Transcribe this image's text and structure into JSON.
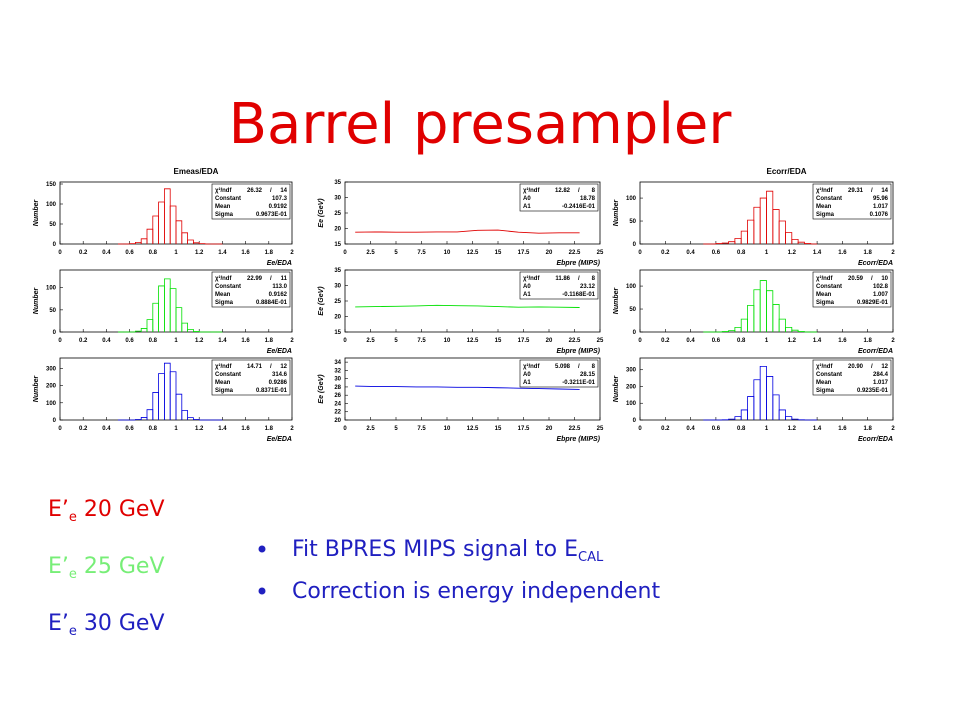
{
  "title": "Barrel presampler",
  "panels": [
    {
      "type": "histogram",
      "title": "Emeas/EDA",
      "ylabel": "Number",
      "xlabel": "Ee/EDA",
      "color": "#e00000",
      "xlim": [
        0,
        2
      ],
      "xticks": [
        0,
        0.2,
        0.4,
        0.6,
        0.8,
        1,
        1.2,
        1.4,
        1.6,
        1.8,
        2
      ],
      "ylim": [
        0,
        155
      ],
      "yticks": [
        0,
        50,
        100,
        150
      ],
      "bins": [
        0.5,
        0.55,
        0.6,
        0.65,
        0.7,
        0.75,
        0.8,
        0.85,
        0.9,
        0.95,
        1,
        1.05,
        1.1,
        1.15,
        1.2,
        1.25,
        1.3,
        1.35,
        1.4
      ],
      "counts": [
        0,
        0,
        1,
        4,
        13,
        37,
        70,
        105,
        138,
        95,
        58,
        28,
        10,
        3,
        1,
        0,
        0,
        0
      ],
      "stats": [
        [
          "χ²/ndf",
          "26.32",
          "/",
          "14"
        ],
        [
          "Constant",
          "107.3"
        ],
        [
          "Mean",
          "0.9192"
        ],
        [
          "Sigma",
          "0.9673E-01"
        ]
      ]
    },
    {
      "type": "histogram",
      "ylabel": "Number",
      "xlabel": "Ee/EDA",
      "color": "#00e000",
      "xlim": [
        0,
        2
      ],
      "xticks": [
        0,
        0.2,
        0.4,
        0.6,
        0.8,
        1,
        1.2,
        1.4,
        1.6,
        1.8,
        2
      ],
      "ylim": [
        0,
        140
      ],
      "yticks": [
        0,
        50,
        100
      ],
      "bins": [
        0.5,
        0.55,
        0.6,
        0.65,
        0.7,
        0.75,
        0.8,
        0.85,
        0.9,
        0.95,
        1,
        1.05,
        1.1,
        1.15,
        1.2,
        1.25,
        1.3,
        1.35,
        1.4
      ],
      "counts": [
        0,
        0,
        0,
        2,
        8,
        28,
        65,
        104,
        120,
        98,
        55,
        20,
        6,
        1,
        0,
        0,
        0,
        0
      ],
      "stats": [
        [
          "χ²/ndf",
          "22.99",
          "/",
          "11"
        ],
        [
          "Constant",
          "113.0"
        ],
        [
          "Mean",
          "0.9162"
        ],
        [
          "Sigma",
          "0.8884E-01"
        ]
      ]
    },
    {
      "type": "histogram",
      "ylabel": "Number",
      "xlabel": "Ee/EDA",
      "color": "#0000e0",
      "xlim": [
        0,
        2
      ],
      "xticks": [
        0,
        0.2,
        0.4,
        0.6,
        0.8,
        1,
        1.2,
        1.4,
        1.6,
        1.8,
        2
      ],
      "ylim": [
        0,
        360
      ],
      "yticks": [
        0,
        100,
        200,
        300
      ],
      "bins": [
        0.5,
        0.55,
        0.6,
        0.65,
        0.7,
        0.75,
        0.8,
        0.85,
        0.9,
        0.95,
        1,
        1.05,
        1.1,
        1.15,
        1.2,
        1.25,
        1.3,
        1.35,
        1.4
      ],
      "counts": [
        0,
        0,
        0,
        3,
        15,
        60,
        160,
        270,
        330,
        280,
        150,
        55,
        14,
        3,
        0,
        0,
        0,
        0
      ],
      "stats": [
        [
          "χ²/ndf",
          "14.71",
          "/",
          "12"
        ],
        [
          "Constant",
          "314.6"
        ],
        [
          "Mean",
          "0.9286"
        ],
        [
          "Sigma",
          "0.8371E-01"
        ]
      ]
    },
    {
      "type": "line",
      "ylabel": "Ee (GeV)",
      "xlabel": "Ebpre (MIPS)",
      "color": "#e00000",
      "xlim": [
        0,
        25
      ],
      "xticks": [
        0,
        2.5,
        5,
        7.5,
        10,
        12.5,
        15,
        17.5,
        20,
        22.5,
        25
      ],
      "ylim": [
        15,
        35
      ],
      "yticks": [
        15,
        20,
        25,
        30,
        35
      ],
      "x": [
        1,
        3,
        5,
        7,
        9,
        11,
        13,
        15,
        17,
        19,
        21,
        23
      ],
      "values": [
        18.8,
        18.9,
        18.8,
        18.8,
        18.9,
        18.9,
        19.4,
        19.5,
        18.8,
        18.5,
        18.6,
        18.6
      ],
      "stats": [
        [
          "χ²/ndf",
          "12.82",
          "/",
          "8"
        ],
        [
          "A0",
          "18.78"
        ],
        [
          "A1",
          "-0.2416E-01"
        ]
      ]
    },
    {
      "type": "line",
      "ylabel": "Ee (GeV)",
      "xlabel": "Ebpre (MIPS)",
      "color": "#00e000",
      "xlim": [
        0,
        25
      ],
      "xticks": [
        0,
        2.5,
        5,
        7.5,
        10,
        12.5,
        15,
        17.5,
        20,
        22.5,
        25
      ],
      "ylim": [
        15,
        35
      ],
      "yticks": [
        15,
        20,
        25,
        30,
        35
      ],
      "x": [
        1,
        3,
        5,
        7,
        9,
        11,
        13,
        15,
        17,
        19,
        21,
        23
      ],
      "values": [
        23.1,
        23.2,
        23.3,
        23.4,
        23.6,
        23.5,
        23.4,
        23.2,
        23.0,
        23.1,
        23.0,
        22.9
      ],
      "stats": [
        [
          "χ²/ndf",
          "11.86",
          "/",
          "8"
        ],
        [
          "A0",
          "23.12"
        ],
        [
          "A1",
          "-0.1168E-01"
        ]
      ]
    },
    {
      "type": "line",
      "ylabel": "Ee (GeV)",
      "xlabel": "Ebpre (MIPS)",
      "color": "#0000e0",
      "xlim": [
        0,
        25
      ],
      "xticks": [
        0,
        2.5,
        5,
        7.5,
        10,
        12.5,
        15,
        17.5,
        20,
        22.5,
        25
      ],
      "ylim": [
        20,
        35
      ],
      "yticks": [
        20,
        22,
        24,
        26,
        28,
        30,
        32,
        34
      ],
      "x": [
        1,
        3,
        5,
        7,
        9,
        11,
        13,
        15,
        17,
        19,
        21,
        23
      ],
      "values": [
        28.2,
        28.1,
        28.1,
        28.0,
        28.0,
        27.9,
        27.9,
        27.8,
        27.7,
        27.6,
        27.5,
        27.4
      ],
      "stats": [
        [
          "χ²/ndf",
          "5.098",
          "/",
          "8"
        ],
        [
          "A0",
          "28.15"
        ],
        [
          "A1",
          "-0.3211E-01"
        ]
      ]
    },
    {
      "type": "histogram",
      "title": "Ecorr/EDA",
      "ylabel": "Number",
      "xlabel": "Ecorr/EDA",
      "color": "#e00000",
      "xlim": [
        0,
        2
      ],
      "xticks": [
        0,
        0.2,
        0.4,
        0.6,
        0.8,
        1,
        1.2,
        1.4,
        1.6,
        1.8,
        2
      ],
      "ylim": [
        0,
        135
      ],
      "yticks": [
        0,
        50,
        100
      ],
      "bins": [
        0.5,
        0.55,
        0.6,
        0.65,
        0.7,
        0.75,
        0.8,
        0.85,
        0.9,
        0.95,
        1,
        1.05,
        1.1,
        1.15,
        1.2,
        1.25,
        1.3,
        1.35,
        1.4
      ],
      "counts": [
        0,
        0,
        1,
        2,
        5,
        12,
        28,
        52,
        80,
        100,
        115,
        75,
        50,
        25,
        10,
        4,
        1,
        0
      ],
      "stats": [
        [
          "χ²/ndf",
          "29.31",
          "/",
          "14"
        ],
        [
          "Constant",
          "95.96"
        ],
        [
          "Mean",
          "1.017"
        ],
        [
          "Sigma",
          "0.1076"
        ]
      ]
    },
    {
      "type": "histogram",
      "ylabel": "Number",
      "xlabel": "Ecorr/EDA",
      "color": "#00e000",
      "xlim": [
        0,
        2
      ],
      "xticks": [
        0,
        0.2,
        0.4,
        0.6,
        0.8,
        1,
        1.2,
        1.4,
        1.6,
        1.8,
        2
      ],
      "ylim": [
        0,
        135
      ],
      "yticks": [
        0,
        50,
        100
      ],
      "bins": [
        0.5,
        0.55,
        0.6,
        0.65,
        0.7,
        0.75,
        0.8,
        0.85,
        0.9,
        0.95,
        1,
        1.05,
        1.1,
        1.15,
        1.2,
        1.25,
        1.3,
        1.35,
        1.4
      ],
      "counts": [
        0,
        0,
        0,
        1,
        3,
        10,
        28,
        58,
        92,
        112,
        90,
        60,
        28,
        10,
        4,
        1,
        0,
        0
      ],
      "stats": [
        [
          "χ²/ndf",
          "20.59",
          "/",
          "10"
        ],
        [
          "Constant",
          "102.8"
        ],
        [
          "Mean",
          "1.007"
        ],
        [
          "Sigma",
          "0.9829E-01"
        ]
      ]
    },
    {
      "type": "histogram",
      "ylabel": "Number",
      "xlabel": "Ecorr/EDA",
      "color": "#0000e0",
      "xlim": [
        0,
        2
      ],
      "xticks": [
        0,
        0.2,
        0.4,
        0.6,
        0.8,
        1,
        1.2,
        1.4,
        1.6,
        1.8,
        2
      ],
      "ylim": [
        0,
        370
      ],
      "yticks": [
        0,
        100,
        200,
        300
      ],
      "bins": [
        0.5,
        0.55,
        0.6,
        0.65,
        0.7,
        0.75,
        0.8,
        0.85,
        0.9,
        0.95,
        1,
        1.05,
        1.1,
        1.15,
        1.2,
        1.25,
        1.3,
        1.35,
        1.4
      ],
      "counts": [
        0,
        0,
        0,
        1,
        5,
        20,
        60,
        140,
        240,
        320,
        260,
        150,
        60,
        20,
        5,
        1,
        0,
        0
      ],
      "stats": [
        [
          "χ²/ndf",
          "20.90",
          "/",
          "12"
        ],
        [
          "Constant",
          "284.4"
        ],
        [
          "Mean",
          "1.017"
        ],
        [
          "Sigma",
          "0.9235E-01"
        ]
      ]
    }
  ],
  "energies": [
    {
      "prefix": "E’",
      "sub": "e",
      "rest": " 20 GeV",
      "color": "#e00000"
    },
    {
      "prefix": "E’",
      "sub": "e",
      "rest": " 25 GeV",
      "color": "#77ee77"
    },
    {
      "prefix": "E’",
      "sub": "e",
      "rest": " 30 GeV",
      "color": "#2020c0"
    }
  ],
  "bullets": [
    {
      "text": "Fit BPRES MIPS signal to E",
      "sub": "CAL"
    },
    {
      "text": "Correction is energy independent"
    }
  ]
}
